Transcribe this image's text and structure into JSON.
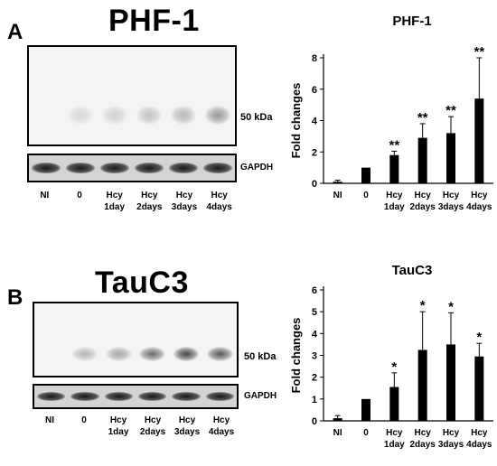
{
  "panels": [
    {
      "letter": "A",
      "blot": {
        "title": "PHF-1",
        "marker_label": "50 kDa",
        "loading_control": "GAPDH",
        "lanes": [
          {
            "line1": "NI",
            "line2": ""
          },
          {
            "line1": "0",
            "line2": ""
          },
          {
            "line1": "Hcy",
            "line2": "1day"
          },
          {
            "line1": "Hcy",
            "line2": "2days"
          },
          {
            "line1": "Hcy",
            "line2": "3days"
          },
          {
            "line1": "Hcy",
            "line2": "4days"
          }
        ],
        "band_intensity": [
          0.0,
          0.15,
          0.18,
          0.25,
          0.3,
          0.45
        ]
      }
    },
    {
      "letter": "B",
      "blot": {
        "title": "TauC3",
        "marker_label": "50 kDa",
        "loading_control": "GAPDH",
        "lanes": [
          {
            "line1": "NI",
            "line2": ""
          },
          {
            "line1": "0",
            "line2": ""
          },
          {
            "line1": "Hcy",
            "line2": "1day"
          },
          {
            "line1": "Hcy",
            "line2": "2days"
          },
          {
            "line1": "Hcy",
            "line2": "3days"
          },
          {
            "line1": "Hcy",
            "line2": "4days"
          }
        ],
        "band_intensity": [
          0.0,
          0.3,
          0.38,
          0.65,
          0.85,
          0.75
        ]
      }
    }
  ],
  "chart_data": [
    {
      "type": "bar",
      "title": "PHF-1",
      "ylabel": "Fold changes",
      "xlabel": "",
      "ylim": [
        0,
        8
      ],
      "yticks": [
        0,
        2,
        4,
        6,
        8
      ],
      "categories": [
        {
          "line1": "NI",
          "line2": ""
        },
        {
          "line1": "0",
          "line2": ""
        },
        {
          "line1": "Hcy",
          "line2": "1day"
        },
        {
          "line1": "Hcy",
          "line2": "2days"
        },
        {
          "line1": "Hcy",
          "line2": "3days"
        },
        {
          "line1": "Hcy",
          "line2": "4days"
        }
      ],
      "values": [
        0.1,
        1.0,
        1.8,
        2.9,
        3.2,
        5.4
      ],
      "errors": [
        0.1,
        0.0,
        0.25,
        0.9,
        1.05,
        2.6
      ],
      "significance": [
        "",
        "",
        "**",
        "**",
        "**",
        "**"
      ],
      "bar_color": "#000000"
    },
    {
      "type": "bar",
      "title": "TauC3",
      "ylabel": "Fold changes",
      "xlabel": "",
      "ylim": [
        0,
        6
      ],
      "yticks": [
        0,
        1,
        2,
        3,
        4,
        5,
        6
      ],
      "categories": [
        {
          "line1": "NI",
          "line2": ""
        },
        {
          "line1": "0",
          "line2": ""
        },
        {
          "line1": "Hcy",
          "line2": "1day"
        },
        {
          "line1": "Hcy",
          "line2": "2days"
        },
        {
          "line1": "Hcy",
          "line2": "3days"
        },
        {
          "line1": "Hcy",
          "line2": "4days"
        }
      ],
      "values": [
        0.12,
        1.0,
        1.55,
        3.25,
        3.5,
        2.95
      ],
      "errors": [
        0.12,
        0.0,
        0.65,
        1.75,
        1.45,
        0.6
      ],
      "significance": [
        "",
        "",
        "*",
        "*",
        "*",
        "*"
      ],
      "bar_color": "#000000"
    }
  ]
}
